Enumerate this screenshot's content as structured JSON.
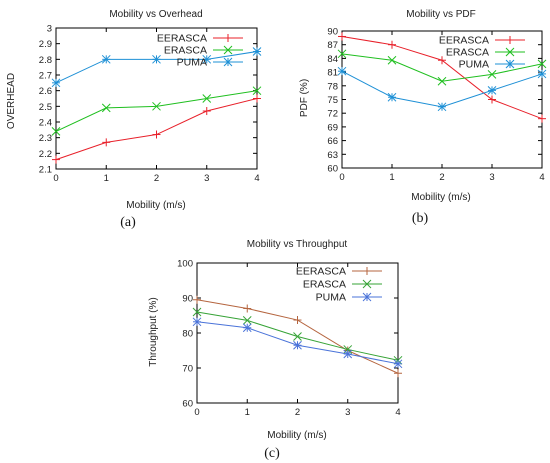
{
  "chart_data": [
    {
      "type": "line",
      "title": "Mobility vs Overhead",
      "xlabel": "Mobility (m/s)",
      "ylabel": "OVERHEAD",
      "caption": "(a)",
      "x": [
        0,
        1,
        2,
        3,
        4
      ],
      "xticks": [
        "0",
        "1",
        "2",
        "3",
        "4"
      ],
      "yticks": [
        "2.1",
        "2.2",
        "2.3",
        "2.4",
        "2.5",
        "2.6",
        "2.7",
        "2.8",
        "2.9",
        "3"
      ],
      "xlim": [
        0,
        4
      ],
      "ylim": [
        2.1,
        3.0
      ],
      "legend_position": "top-right",
      "series": [
        {
          "name": "EERASCA",
          "color": "#e8202a",
          "marker": "plus",
          "values": [
            2.16,
            2.27,
            2.32,
            2.47,
            2.55
          ]
        },
        {
          "name": "ERASCA",
          "color": "#1fbf1f",
          "marker": "x",
          "values": [
            2.34,
            2.49,
            2.5,
            2.55,
            2.6
          ]
        },
        {
          "name": "PUMA",
          "color": "#1e90d6",
          "marker": "star",
          "values": [
            2.65,
            2.8,
            2.8,
            2.8,
            2.85
          ]
        }
      ]
    },
    {
      "type": "line",
      "title": "Mobility vs PDF",
      "xlabel": "Mobility (m/s)",
      "ylabel": "PDF (%)",
      "caption": "(b)",
      "x": [
        0,
        1,
        2,
        3,
        4
      ],
      "xticks": [
        "0",
        "1",
        "2",
        "3",
        "4"
      ],
      "yticks": [
        "60",
        "63",
        "66",
        "69",
        "72",
        "75",
        "78",
        "81",
        "84",
        "87",
        "90"
      ],
      "xlim": [
        0,
        4
      ],
      "ylim": [
        60,
        90
      ],
      "legend_position": "top-right",
      "series": [
        {
          "name": "EERASCA",
          "color": "#e8202a",
          "marker": "plus",
          "values": [
            88.8,
            87.0,
            83.6,
            75.0,
            70.8
          ]
        },
        {
          "name": "ERASCA",
          "color": "#1fbf1f",
          "marker": "x",
          "values": [
            85.0,
            83.6,
            79.0,
            80.5,
            82.8
          ]
        },
        {
          "name": "PUMA",
          "color": "#1e90d6",
          "marker": "star",
          "values": [
            81.2,
            75.5,
            73.4,
            77.0,
            80.6
          ]
        }
      ]
    },
    {
      "type": "line",
      "title": "Mobility vs Throughput",
      "xlabel": "Mobility (m/s)",
      "ylabel": "Throughput (%)",
      "caption": "(c)",
      "x": [
        0,
        1,
        2,
        3,
        4
      ],
      "xticks": [
        "0",
        "1",
        "2",
        "3",
        "4"
      ],
      "yticks": [
        "60",
        "70",
        "80",
        "90",
        "100"
      ],
      "xlim": [
        0,
        4
      ],
      "ylim": [
        60,
        100
      ],
      "legend_position": "top-right",
      "series": [
        {
          "name": "EERASCA",
          "color": "#b5653f",
          "marker": "plus",
          "values": [
            89.5,
            87.0,
            83.7,
            75.0,
            68.5
          ]
        },
        {
          "name": "ERASCA",
          "color": "#36a336",
          "marker": "x",
          "values": [
            86.0,
            83.6,
            79.0,
            75.3,
            72.2
          ]
        },
        {
          "name": "PUMA",
          "color": "#4a73d9",
          "marker": "star",
          "values": [
            83.2,
            81.5,
            76.5,
            74.0,
            71.2
          ]
        }
      ]
    }
  ]
}
